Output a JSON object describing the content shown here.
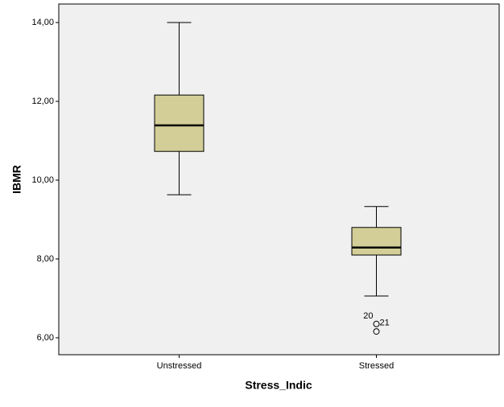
{
  "chart_data": {
    "type": "box",
    "xlabel": "Stress_Indic",
    "ylabel": "IBMR",
    "categories": [
      "Unstressed",
      "Stressed"
    ],
    "boxes": [
      {
        "whislo": 9.63,
        "q1": 10.73,
        "med": 11.39,
        "q3": 12.16,
        "whishi": 14.0,
        "outliers": []
      },
      {
        "whislo": 7.06,
        "q1": 8.1,
        "med": 8.29,
        "q3": 8.8,
        "whishi": 9.33,
        "outliers": [
          {
            "value": 6.35,
            "label": "21"
          },
          {
            "value": 6.16,
            "label": "20"
          }
        ]
      }
    ],
    "color": "#d3ce97",
    "background": "#f0f0f0",
    "ylim": [
      5.57,
      14.47
    ],
    "yticks": [
      {
        "value": 6,
        "label": "6,00"
      },
      {
        "value": 8,
        "label": "8,00"
      },
      {
        "value": 10,
        "label": "10,00"
      },
      {
        "value": 12,
        "label": "12,00"
      },
      {
        "value": 14,
        "label": "14,00"
      }
    ]
  }
}
